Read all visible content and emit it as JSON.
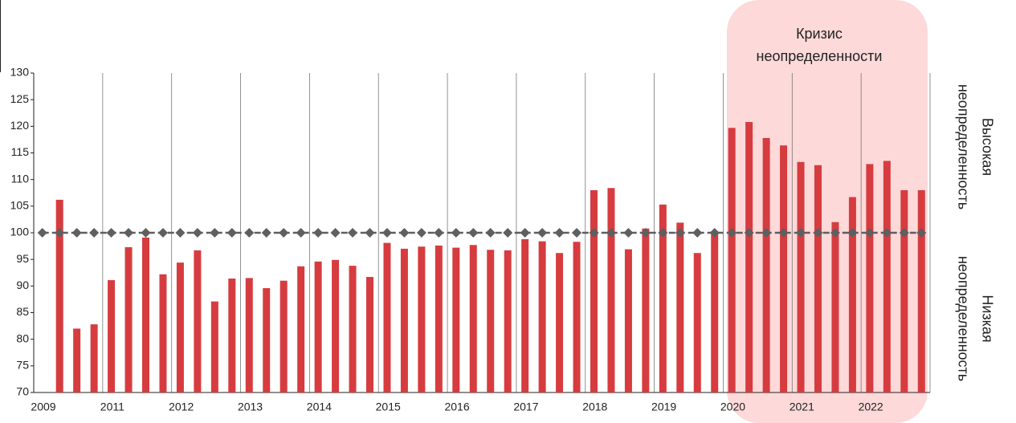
{
  "chart_data": {
    "type": "bar",
    "categories": [
      "2009",
      null,
      null,
      null,
      "2011",
      null,
      null,
      null,
      "2012",
      null,
      null,
      null,
      "2013",
      null,
      null,
      null,
      "2014",
      null,
      null,
      null,
      "2015",
      null,
      null,
      null,
      "2016",
      null,
      null,
      null,
      "2017",
      null,
      null,
      null,
      "2018",
      null,
      null,
      null,
      "2019",
      null,
      null,
      null,
      "2020",
      null,
      null,
      null,
      "2021",
      null,
      null,
      null,
      "2022",
      null,
      null,
      null
    ],
    "series": [
      {
        "type": "bar",
        "color": "#d63c3f",
        "values": [
          null,
          106.2,
          82,
          82.8,
          91.1,
          97.3,
          99.1,
          92.2,
          94.4,
          96.7,
          87.1,
          91.4,
          91.5,
          89.6,
          91,
          93.7,
          94.6,
          94.9,
          93.8,
          91.7,
          98.1,
          97,
          97.4,
          97.6,
          97.2,
          97.7,
          96.8,
          96.7,
          98.8,
          98.4,
          96.2,
          98.3,
          108,
          108.4,
          96.9,
          100.8,
          105.3,
          101.9,
          96.2,
          100.3,
          119.7,
          120.8,
          117.8,
          116.4,
          113.3,
          112.7,
          102,
          106.7,
          112.9,
          113.5,
          108,
          108
        ]
      },
      {
        "type": "line",
        "color": "#5f5f5f",
        "values": [
          100,
          100,
          100,
          100,
          100,
          100,
          100,
          100,
          100,
          100,
          100,
          100,
          100,
          100,
          100,
          100,
          100,
          100,
          100,
          100,
          100,
          100,
          100,
          100,
          100,
          100,
          100,
          100,
          100,
          100,
          100,
          100,
          100,
          100,
          100,
          100,
          100,
          100,
          100,
          100,
          100,
          100,
          100,
          100,
          100,
          100,
          100,
          100,
          100,
          100,
          100,
          100
        ]
      }
    ],
    "ylim": [
      70,
      130
    ],
    "yticks": [
      70,
      75,
      80,
      85,
      90,
      95,
      100,
      105,
      110,
      115,
      120,
      125,
      130
    ],
    "highlight_label": [
      "Кризис",
      "неопределенности"
    ],
    "upper_label": [
      "Высокая",
      "неопределенность"
    ],
    "lower_label": [
      "Низкая",
      "неопределенность"
    ]
  }
}
